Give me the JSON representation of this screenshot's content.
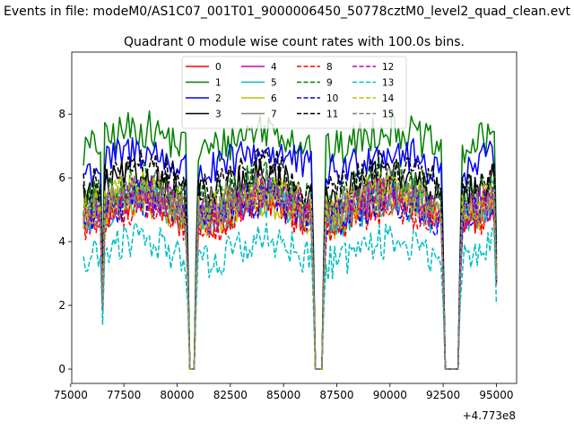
{
  "suptitle": "Events in file: modeM0/AS1C07_001T01_9000006450_50778cztM0_level2_quad_clean.evt",
  "chart_data": {
    "type": "line",
    "title": "Quadrant 0 module wise count rates with 100.0s bins.",
    "xlabel": "",
    "ylabel": "",
    "offset_text": "+4.773e8",
    "xlim": [
      75050,
      95950
    ],
    "ylim": [
      -0.45,
      9.95
    ],
    "xticks": [
      75000,
      77500,
      80000,
      82500,
      85000,
      87500,
      90000,
      92500,
      95000
    ],
    "xtick_labels": [
      "75000",
      "77500",
      "80000",
      "82500",
      "85000",
      "87500",
      "90000",
      "92500",
      "95000"
    ],
    "yticks": [
      0,
      2,
      4,
      6,
      8
    ],
    "ytick_labels": [
      "0",
      "2",
      "4",
      "6",
      "8"
    ],
    "x_start": 75600,
    "x_step": 100,
    "gaps": [
      {
        "start": 80600,
        "end": 80800
      },
      {
        "start": 86500,
        "end": 86800
      },
      {
        "start": 92600,
        "end": 93200
      }
    ],
    "dips": [
      76500
    ],
    "legend_position": "upper center",
    "legend_columns": 4,
    "series": [
      {
        "name": "0",
        "color": "#ff0000",
        "dash": "solid",
        "base": 5.0
      },
      {
        "name": "1",
        "color": "#008000",
        "dash": "solid",
        "base": 7.2
      },
      {
        "name": "2",
        "color": "#0000ff",
        "dash": "solid",
        "base": 6.5
      },
      {
        "name": "3",
        "color": "#000000",
        "dash": "solid",
        "base": 5.7
      },
      {
        "name": "4",
        "color": "#bf00bf",
        "dash": "solid",
        "base": 5.1
      },
      {
        "name": "5",
        "color": "#00bfbf",
        "dash": "solid",
        "base": 5.0
      },
      {
        "name": "6",
        "color": "#bfbf00",
        "dash": "solid",
        "base": 5.0
      },
      {
        "name": "7",
        "color": "#808080",
        "dash": "solid",
        "base": 5.4
      },
      {
        "name": "8",
        "color": "#ff0000",
        "dash": "dashed",
        "base": 4.8
      },
      {
        "name": "9",
        "color": "#008000",
        "dash": "dashed",
        "base": 5.6
      },
      {
        "name": "10",
        "color": "#0000ff",
        "dash": "dashed",
        "base": 5.0
      },
      {
        "name": "11",
        "color": "#000000",
        "dash": "dashed",
        "base": 6.0
      },
      {
        "name": "12",
        "color": "#bf00bf",
        "dash": "dashed",
        "base": 5.2
      },
      {
        "name": "13",
        "color": "#00bfbf",
        "dash": "dashed",
        "base": 3.7
      },
      {
        "name": "14",
        "color": "#bfbf00",
        "dash": "dashed",
        "base": 5.3
      },
      {
        "name": "15",
        "color": "#808080",
        "dash": "dashed",
        "base": 5.1
      }
    ]
  }
}
